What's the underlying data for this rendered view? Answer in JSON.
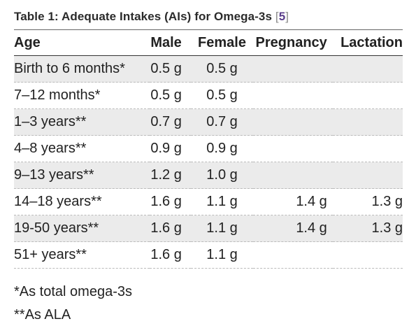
{
  "caption": {
    "title": "Table 1: Adequate Intakes (AIs) for Omega-3s",
    "bracket_open": "[",
    "ref_number": "5",
    "bracket_close": "]"
  },
  "table": {
    "headers": [
      "Age",
      "Male",
      "Female",
      "Pregnancy",
      "Lactation"
    ],
    "rows": [
      {
        "age": "Birth to 6 months*",
        "male": "0.5 g",
        "female": "0.5 g",
        "pregnancy": "",
        "lactation": ""
      },
      {
        "age": "7–12 months*",
        "male": "0.5 g",
        "female": "0.5 g",
        "pregnancy": "",
        "lactation": ""
      },
      {
        "age": "1–3 years**",
        "male": "0.7 g",
        "female": "0.7 g",
        "pregnancy": "",
        "lactation": ""
      },
      {
        "age": "4–8 years**",
        "male": "0.9 g",
        "female": "0.9 g",
        "pregnancy": "",
        "lactation": ""
      },
      {
        "age": "9–13 years**",
        "male": "1.2 g",
        "female": "1.0 g",
        "pregnancy": "",
        "lactation": ""
      },
      {
        "age": "14–18 years**",
        "male": "1.6 g",
        "female": "1.1 g",
        "pregnancy": "1.4 g",
        "lactation": "1.3 g"
      },
      {
        "age": "19-50 years**",
        "male": "1.6 g",
        "female": "1.1 g",
        "pregnancy": "1.4 g",
        "lactation": "1.3 g"
      },
      {
        "age": "51+ years**",
        "male": "1.6 g",
        "female": "1.1 g",
        "pregnancy": "",
        "lactation": ""
      }
    ]
  },
  "footnotes": [
    "*As total omega-3s",
    "**As ALA"
  ],
  "colors": {
    "stripe": "#ebebeb",
    "reference_link": "#5b3f8c"
  }
}
